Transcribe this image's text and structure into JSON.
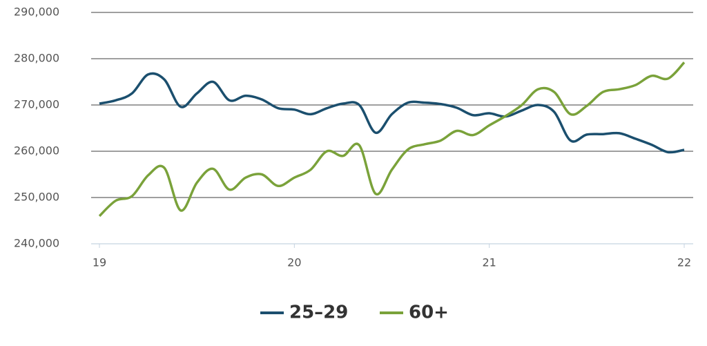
{
  "chart_data": {
    "type": "line",
    "x": [
      19,
      19.083,
      19.167,
      19.25,
      19.333,
      19.417,
      19.5,
      19.583,
      19.667,
      19.75,
      19.833,
      19.917,
      20,
      20.083,
      20.167,
      20.25,
      20.333,
      20.417,
      20.5,
      20.583,
      20.667,
      20.75,
      20.833,
      20.917,
      21,
      21.083,
      21.167,
      21.25,
      21.333,
      21.417,
      21.5,
      21.583,
      21.667,
      21.75,
      21.833,
      21.917,
      22
    ],
    "series": [
      {
        "name": "25–29",
        "color": "#1b4f6e",
        "values": [
          270300,
          271000,
          272500,
          276600,
          275500,
          269600,
          272500,
          275000,
          271000,
          272000,
          271200,
          269300,
          269000,
          268000,
          269300,
          270300,
          270000,
          264000,
          268000,
          270500,
          270500,
          270200,
          269400,
          267800,
          268200,
          267500,
          268800,
          270000,
          268500,
          262300,
          263600,
          263700,
          263900,
          262700,
          261400,
          259800,
          260300
        ]
      },
      {
        "name": "60+",
        "color": "#7aa23a",
        "values": [
          246000,
          249300,
          250300,
          254800,
          256400,
          247200,
          253200,
          256200,
          251700,
          254300,
          255000,
          252500,
          254300,
          256000,
          260000,
          259000,
          261300,
          250800,
          256000,
          260400,
          261500,
          262300,
          264400,
          263500,
          265600,
          267600,
          270000,
          273400,
          272800,
          268000,
          269800,
          272800,
          273400,
          274300,
          276300,
          275700,
          279200
        ]
      }
    ],
    "xlim": [
      19,
      22
    ],
    "xticks": [
      19,
      20,
      21,
      22
    ],
    "ylim": [
      240000,
      290000
    ],
    "yticks": [
      {
        "value": 240000,
        "label": "240,000"
      },
      {
        "value": 250000,
        "label": "250,000"
      },
      {
        "value": 260000,
        "label": "260,000"
      },
      {
        "value": 270000,
        "label": "270,000"
      },
      {
        "value": 280000,
        "label": "280,000"
      },
      {
        "value": 290000,
        "label": "290,000"
      }
    ],
    "grid": true,
    "legend": "bottom"
  }
}
